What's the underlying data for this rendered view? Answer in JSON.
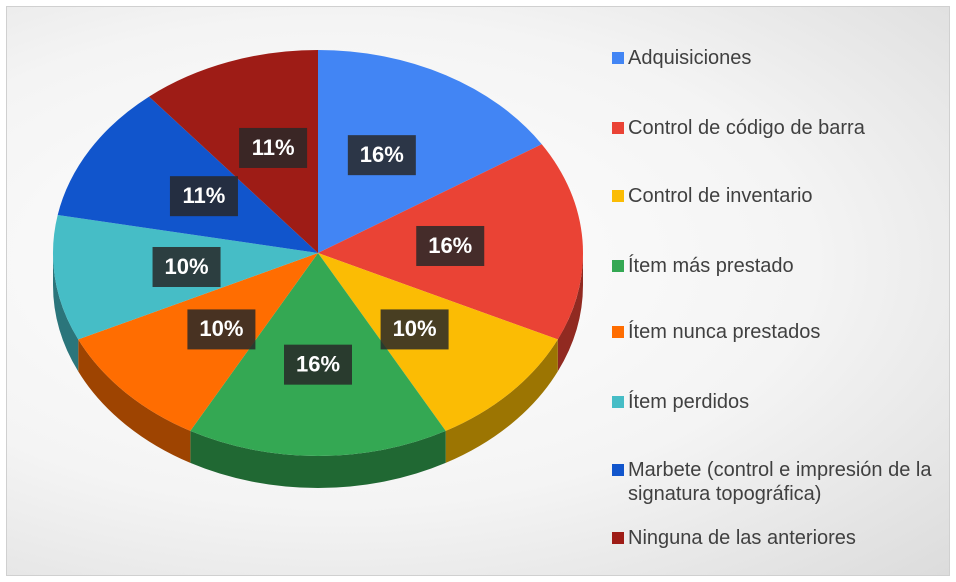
{
  "chart_data": {
    "type": "pie",
    "categories": [
      "Adquisiciones",
      "Control de código de barra",
      "Control de inventario",
      "Ítem más prestado",
      "Ítem nunca prestados",
      "Ítem perdidos",
      "Marbete (control e impresión de la signatura topográfica)",
      "Ninguna de las anteriores"
    ],
    "values": [
      16,
      16,
      10,
      16,
      10,
      10,
      11,
      11
    ],
    "value_labels": [
      "16%",
      "16%",
      "10%",
      "16%",
      "10%",
      "10%",
      "11%",
      "11%"
    ],
    "colors": [
      "#4285f4",
      "#ea4335",
      "#fbbc04",
      "#34a853",
      "#ff6d01",
      "#46bdc6",
      "#1155cc",
      "#9e1c16"
    ],
    "legend": "right"
  }
}
